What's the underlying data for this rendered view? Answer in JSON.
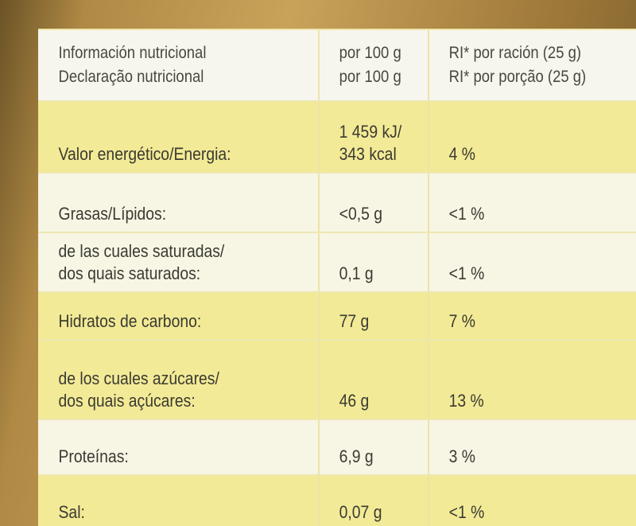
{
  "table": {
    "header": [
      [
        "Información nutricional",
        "Declaração nutricional"
      ],
      [
        "por 100 g",
        "por 100 g"
      ],
      [
        "RI* por ración (25 g)",
        "RI* por porção (25 g)"
      ]
    ],
    "rows": [
      [
        [
          "Valor energético/Energia:"
        ],
        [
          "1 459 kJ/",
          "343 kcal"
        ],
        [
          "4 %"
        ]
      ],
      [
        [
          "Grasas/Lípidos:"
        ],
        [
          "<0,5 g"
        ],
        [
          "<1 %"
        ]
      ],
      [
        [
          "de las cuales saturadas/",
          "dos quais saturados:"
        ],
        [
          "0,1 g"
        ],
        [
          "<1 %"
        ]
      ],
      [
        [
          "Hidratos de carbono:"
        ],
        [
          "77 g"
        ],
        [
          "7 %"
        ]
      ],
      [
        [
          "de los cuales azúcares/",
          "dos quais açúcares:"
        ],
        [
          "46 g"
        ],
        [
          "13 %"
        ]
      ],
      [
        [
          "Proteínas:"
        ],
        [
          "6,9 g"
        ],
        [
          "3 %"
        ]
      ],
      [
        [
          "Sal:"
        ],
        [
          "0,07 g"
        ],
        [
          "<1 %"
        ]
      ]
    ]
  }
}
